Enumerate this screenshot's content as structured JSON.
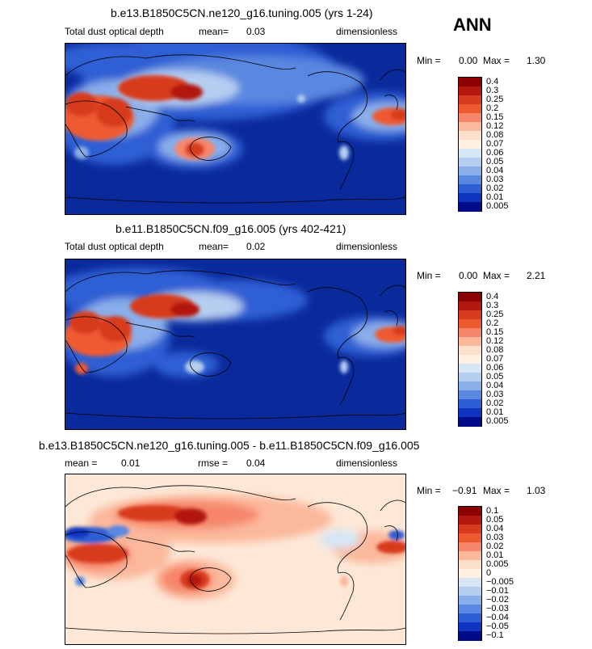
{
  "season": "ANN",
  "variable": "Total dust optical depth",
  "units": "dimensionless",
  "panels": [
    {
      "title": "b.e13.B1850C5CN.ne120_g16.tuning.005 (yrs 1-24)",
      "left_label": "Total dust optical depth",
      "stat_label": "mean=",
      "stat_value": "0.03",
      "units": "dimensionless",
      "min_label": "Min =",
      "min_value": "0.00",
      "max_label": "Max =",
      "max_value": "1.30",
      "colorbar": [
        "0.4",
        "0.3",
        "0.25",
        "0.2",
        "0.15",
        "0.12",
        "0.08",
        "0.07",
        "0.06",
        "0.05",
        "0.04",
        "0.03",
        "0.02",
        "0.01",
        "0.005"
      ]
    },
    {
      "title": "b.e11.B1850C5CN.f09_g16.005 (yrs 402-421)",
      "left_label": "Total dust optical depth",
      "stat_label": "mean=",
      "stat_value": "0.02",
      "units": "dimensionless",
      "min_label": "Min =",
      "min_value": "0.00",
      "max_label": "Max =",
      "max_value": "2.21",
      "colorbar": [
        "0.4",
        "0.3",
        "0.25",
        "0.2",
        "0.15",
        "0.12",
        "0.08",
        "0.07",
        "0.06",
        "0.05",
        "0.04",
        "0.03",
        "0.02",
        "0.01",
        "0.005"
      ]
    },
    {
      "title": "b.e13.B1850C5CN.ne120_g16.tuning.005 - b.e11.B1850C5CN.f09_g16.005",
      "left_label": "mean =",
      "left_value": "0.01",
      "stat_label": "rmse =",
      "stat_value": "0.04",
      "units": "dimensionless",
      "min_label": "Min =",
      "min_value": "−0.91",
      "max_label": "Max =",
      "max_value": "1.03",
      "colorbar": [
        "0.1",
        "0.05",
        "0.04",
        "0.03",
        "0.02",
        "0.01",
        "0.005",
        "0",
        "−0.005",
        "−0.01",
        "−0.02",
        "−0.03",
        "−0.04",
        "−0.05",
        "−0.1"
      ]
    }
  ],
  "colors": {
    "abs_scale": [
      "#8b0000",
      "#b2180e",
      "#d73a1e",
      "#ee5a30",
      "#f6866a",
      "#fbb89b",
      "#fde0cb",
      "#fff0e2",
      "#d6e6f5",
      "#b5cef0",
      "#8aaeea",
      "#5a87e0",
      "#2e5ed4",
      "#0f34c0",
      "#000b8a"
    ],
    "diff_scale": [
      "#8b0000",
      "#b2180e",
      "#d73a1e",
      "#ee5a30",
      "#f6866a",
      "#fbb89b",
      "#fde0cb",
      "#fff0e2",
      "#d6e6f5",
      "#b5cef0",
      "#8aaeea",
      "#5a87e0",
      "#2e5ed4",
      "#0f34c0",
      "#000b8a"
    ],
    "abs_background": "#0a2a9c",
    "diff_background": "#fde8d7"
  },
  "chart_data": [
    {
      "type": "heatmap",
      "title": "b.e13.B1850C5CN.ne120_g16.tuning.005 (yrs 1-24)",
      "field": "Total dust optical depth",
      "mean": 0.03,
      "min": 0.0,
      "max": 1.3,
      "contour_levels": [
        0.005,
        0.01,
        0.02,
        0.03,
        0.04,
        0.05,
        0.06,
        0.07,
        0.08,
        0.12,
        0.15,
        0.2,
        0.25,
        0.3,
        0.4
      ]
    },
    {
      "type": "heatmap",
      "title": "b.e11.B1850C5CN.f09_g16.005 (yrs 402-421)",
      "field": "Total dust optical depth",
      "mean": 0.02,
      "min": 0.0,
      "max": 2.21,
      "contour_levels": [
        0.005,
        0.01,
        0.02,
        0.03,
        0.04,
        0.05,
        0.06,
        0.07,
        0.08,
        0.12,
        0.15,
        0.2,
        0.25,
        0.3,
        0.4
      ]
    },
    {
      "type": "heatmap",
      "title": "b.e13.B1850C5CN.ne120_g16.tuning.005 - b.e11.B1850C5CN.f09_g16.005",
      "field": "difference",
      "mean": 0.01,
      "rmse": 0.04,
      "min": -0.91,
      "max": 1.03,
      "contour_levels": [
        -0.1,
        -0.05,
        -0.04,
        -0.03,
        -0.02,
        -0.01,
        -0.005,
        0,
        0.005,
        0.01,
        0.02,
        0.03,
        0.04,
        0.05,
        0.1
      ]
    }
  ]
}
